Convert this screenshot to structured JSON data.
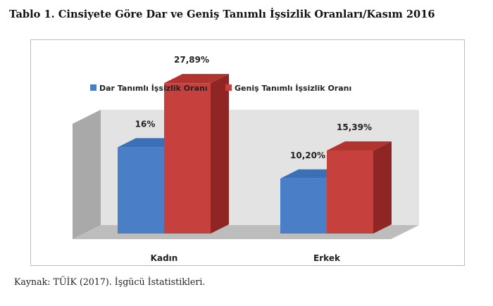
{
  "title": "Tablo 1. Cinsiyete Göre Dar ve Geniş Tanımlı İşsizlik Oranları/Kasım 2016",
  "source": "Kaynak: TÜİK (2017). İşgücü İstatistikleri.",
  "chart_data": {
    "type": "bar",
    "style": "3d-clustered-column",
    "categories": [
      "Kadın",
      "Erkek"
    ],
    "series": [
      {
        "name": "Dar Tanımlı İşsizlik Oranı",
        "values": [
          16,
          10.2
        ],
        "labels": [
          "16%",
          "10,20%"
        ],
        "color": "#4a7fc8",
        "top_color": "#3b6fb6",
        "side_color": "#2f5e9e"
      },
      {
        "name": "Geniş Tanımlı  İşsizlik Oranı",
        "values": [
          27.89,
          15.39
        ],
        "labels": [
          "27,89%",
          "15,39%"
        ],
        "color": "#c6403e",
        "top_color": "#b23431",
        "side_color": "#8f2623"
      }
    ],
    "ylim": [
      0,
      30
    ],
    "grid": false,
    "legend": "top",
    "wall_color": "#e3e3e3",
    "floor_color": "#bdbdbd"
  }
}
